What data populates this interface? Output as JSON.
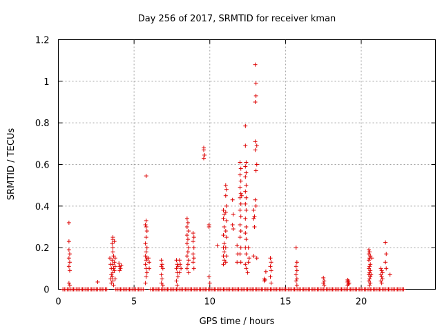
{
  "chart_data": {
    "type": "scatter",
    "title": "Day 256 of 2017, SRMTID for receiver kman",
    "xlabel": "GPS time / hours",
    "ylabel": "SRMTID / TECUs",
    "xlim": [
      0,
      24
    ],
    "ylim": [
      0,
      1.2
    ],
    "plot_xmax": 24.9,
    "xticks": [
      0,
      5,
      10,
      15,
      20
    ],
    "xtick_labels": [
      "0",
      "5",
      "10",
      "15",
      "20"
    ],
    "yticks": [
      0,
      0.2,
      0.4,
      0.6,
      0.8,
      1,
      1.2
    ],
    "ytick_labels": [
      "0",
      "0.2",
      "0.4",
      "0.6",
      "0.8",
      "1",
      "1.2"
    ],
    "grid": true,
    "marker": "+",
    "color": "#dd0000",
    "series": [
      {
        "name": "SRMTID",
        "points": [
          [
            0.7,
            0.32
          ],
          [
            0.7,
            0.23
          ],
          [
            0.7,
            0.19
          ],
          [
            0.75,
            0.17
          ],
          [
            0.7,
            0.15
          ],
          [
            0.75,
            0.13
          ],
          [
            0.7,
            0.11
          ],
          [
            0.75,
            0.09
          ],
          [
            0.7,
            0.03
          ],
          [
            0.75,
            0.02
          ],
          [
            2.6,
            0.035
          ],
          [
            3.4,
            0.15
          ],
          [
            3.45,
            0.12
          ],
          [
            3.5,
            0.1
          ],
          [
            3.5,
            0.07
          ],
          [
            3.45,
            0.05
          ],
          [
            3.5,
            0.03
          ],
          [
            3.6,
            0.25
          ],
          [
            3.6,
            0.24
          ],
          [
            3.55,
            0.22
          ],
          [
            3.6,
            0.2
          ],
          [
            3.6,
            0.18
          ],
          [
            3.65,
            0.16
          ],
          [
            3.55,
            0.14
          ],
          [
            3.6,
            0.12
          ],
          [
            3.65,
            0.1
          ],
          [
            3.6,
            0.08
          ],
          [
            3.55,
            0.06
          ],
          [
            3.6,
            0.04
          ],
          [
            3.65,
            0.02
          ],
          [
            3.7,
            0.23
          ],
          [
            3.75,
            0.15
          ],
          [
            3.7,
            0.13
          ],
          [
            3.75,
            0.11
          ],
          [
            3.7,
            0.09
          ],
          [
            3.75,
            0.05
          ],
          [
            4.0,
            0.125
          ],
          [
            4.05,
            0.11
          ],
          [
            4.1,
            0.1
          ],
          [
            4.05,
            0.09
          ],
          [
            4.15,
            0.115
          ],
          [
            5.8,
            0.545
          ],
          [
            5.8,
            0.33
          ],
          [
            5.75,
            0.31
          ],
          [
            5.8,
            0.3
          ],
          [
            5.85,
            0.28
          ],
          [
            5.8,
            0.25
          ],
          [
            5.75,
            0.22
          ],
          [
            5.85,
            0.2
          ],
          [
            5.8,
            0.18
          ],
          [
            5.75,
            0.16
          ],
          [
            5.85,
            0.15
          ],
          [
            5.8,
            0.14
          ],
          [
            5.75,
            0.12
          ],
          [
            5.8,
            0.1
          ],
          [
            5.85,
            0.08
          ],
          [
            5.8,
            0.06
          ],
          [
            5.75,
            0.03
          ],
          [
            5.95,
            0.15
          ],
          [
            6.0,
            0.13
          ],
          [
            6.0,
            0.1
          ],
          [
            6.8,
            0.14
          ],
          [
            6.85,
            0.12
          ],
          [
            6.8,
            0.11
          ],
          [
            6.9,
            0.1
          ],
          [
            6.8,
            0.07
          ],
          [
            6.85,
            0.05
          ],
          [
            6.8,
            0.03
          ],
          [
            6.9,
            0.02
          ],
          [
            7.8,
            0.14
          ],
          [
            7.85,
            0.12
          ],
          [
            7.9,
            0.11
          ],
          [
            7.8,
            0.1
          ],
          [
            7.85,
            0.08
          ],
          [
            7.9,
            0.06
          ],
          [
            7.8,
            0.04
          ],
          [
            7.85,
            0.02
          ],
          [
            8.0,
            0.14
          ],
          [
            8.05,
            0.12
          ],
          [
            8.1,
            0.1
          ],
          [
            8.0,
            0.08
          ],
          [
            8.5,
            0.34
          ],
          [
            8.55,
            0.32
          ],
          [
            8.5,
            0.3
          ],
          [
            8.6,
            0.28
          ],
          [
            8.5,
            0.26
          ],
          [
            8.55,
            0.24
          ],
          [
            8.5,
            0.22
          ],
          [
            8.6,
            0.2
          ],
          [
            8.55,
            0.18
          ],
          [
            8.5,
            0.16
          ],
          [
            8.6,
            0.14
          ],
          [
            8.55,
            0.12
          ],
          [
            8.5,
            0.1
          ],
          [
            8.6,
            0.08
          ],
          [
            8.9,
            0.27
          ],
          [
            8.95,
            0.25
          ],
          [
            8.9,
            0.23
          ],
          [
            8.95,
            0.2
          ],
          [
            8.9,
            0.17
          ],
          [
            8.95,
            0.15
          ],
          [
            8.9,
            0.13
          ],
          [
            8.95,
            0.1
          ],
          [
            9.6,
            0.68
          ],
          [
            9.6,
            0.67
          ],
          [
            9.65,
            0.645
          ],
          [
            9.6,
            0.63
          ],
          [
            9.95,
            0.31
          ],
          [
            9.95,
            0.3
          ],
          [
            9.95,
            0.06
          ],
          [
            10.0,
            0.03
          ],
          [
            10.5,
            0.21
          ],
          [
            10.9,
            0.38
          ],
          [
            10.95,
            0.36
          ],
          [
            10.9,
            0.34
          ],
          [
            10.95,
            0.3
          ],
          [
            10.9,
            0.26
          ],
          [
            10.95,
            0.22
          ],
          [
            10.9,
            0.2
          ],
          [
            10.95,
            0.18
          ],
          [
            10.9,
            0.16
          ],
          [
            10.95,
            0.14
          ],
          [
            10.9,
            0.12
          ],
          [
            11.05,
            0.5
          ],
          [
            11.1,
            0.48
          ],
          [
            11.05,
            0.45
          ],
          [
            11.1,
            0.4
          ],
          [
            11.05,
            0.37
          ],
          [
            11.1,
            0.33
          ],
          [
            11.05,
            0.28
          ],
          [
            11.1,
            0.25
          ],
          [
            11.05,
            0.2
          ],
          [
            11.1,
            0.16
          ],
          [
            11.05,
            0.13
          ],
          [
            11.5,
            0.43
          ],
          [
            11.55,
            0.36
          ],
          [
            11.5,
            0.31
          ],
          [
            11.55,
            0.29
          ],
          [
            11.8,
            0.21
          ],
          [
            11.85,
            0.17
          ],
          [
            11.8,
            0.13
          ],
          [
            12.0,
            0.61
          ],
          [
            12.05,
            0.58
          ],
          [
            12.0,
            0.55
          ],
          [
            12.05,
            0.52
          ],
          [
            12.0,
            0.49
          ],
          [
            12.05,
            0.46
          ],
          [
            12.1,
            0.45
          ],
          [
            12.0,
            0.44
          ],
          [
            12.05,
            0.41
          ],
          [
            12.0,
            0.38
          ],
          [
            12.05,
            0.35
          ],
          [
            12.0,
            0.31
          ],
          [
            12.05,
            0.28
          ],
          [
            12.0,
            0.25
          ],
          [
            12.05,
            0.2
          ],
          [
            12.0,
            0.17
          ],
          [
            12.05,
            0.13
          ],
          [
            12.35,
            0.785
          ],
          [
            12.35,
            0.69
          ],
          [
            12.4,
            0.61
          ],
          [
            12.35,
            0.59
          ],
          [
            12.4,
            0.56
          ],
          [
            12.35,
            0.54
          ],
          [
            12.4,
            0.5
          ],
          [
            12.35,
            0.47
          ],
          [
            12.4,
            0.44
          ],
          [
            12.35,
            0.41
          ],
          [
            12.4,
            0.38
          ],
          [
            12.35,
            0.34
          ],
          [
            12.4,
            0.3
          ],
          [
            12.35,
            0.27
          ],
          [
            12.4,
            0.24
          ],
          [
            12.35,
            0.2
          ],
          [
            12.4,
            0.17
          ],
          [
            12.35,
            0.12
          ],
          [
            12.4,
            0.1
          ],
          [
            12.55,
            0.2
          ],
          [
            12.6,
            0.15
          ],
          [
            12.55,
            0.13
          ],
          [
            12.5,
            0.08
          ],
          [
            12.9,
            0.38
          ],
          [
            12.95,
            0.35
          ],
          [
            12.9,
            0.34
          ],
          [
            12.95,
            0.3
          ],
          [
            12.9,
            0.16
          ],
          [
            13.0,
            1.08
          ],
          [
            13.05,
            0.99
          ],
          [
            13.05,
            0.93
          ],
          [
            13.0,
            0.9
          ],
          [
            13.0,
            0.71
          ],
          [
            13.1,
            0.69
          ],
          [
            13.0,
            0.67
          ],
          [
            13.1,
            0.6
          ],
          [
            13.05,
            0.57
          ],
          [
            13.0,
            0.43
          ],
          [
            13.05,
            0.4
          ],
          [
            13.1,
            0.15
          ],
          [
            13.6,
            0.05
          ],
          [
            13.65,
            0.045
          ],
          [
            13.6,
            0.04
          ],
          [
            13.7,
            0.085
          ],
          [
            14.0,
            0.15
          ],
          [
            14.05,
            0.13
          ],
          [
            14.0,
            0.11
          ],
          [
            14.05,
            0.09
          ],
          [
            14.0,
            0.06
          ],
          [
            14.05,
            0.03
          ],
          [
            15.7,
            0.2
          ],
          [
            15.75,
            0.13
          ],
          [
            15.7,
            0.11
          ],
          [
            15.75,
            0.09
          ],
          [
            15.7,
            0.07
          ],
          [
            15.75,
            0.05
          ],
          [
            15.7,
            0.04
          ],
          [
            15.75,
            0.02
          ],
          [
            17.5,
            0.055
          ],
          [
            17.55,
            0.04
          ],
          [
            17.5,
            0.03
          ],
          [
            17.55,
            0.02
          ],
          [
            19.1,
            0.045
          ],
          [
            19.15,
            0.04
          ],
          [
            19.1,
            0.035
          ],
          [
            19.2,
            0.03
          ],
          [
            19.15,
            0.025
          ],
          [
            19.1,
            0.02
          ],
          [
            20.5,
            0.19
          ],
          [
            20.55,
            0.18
          ],
          [
            20.5,
            0.17
          ],
          [
            20.6,
            0.16
          ],
          [
            20.55,
            0.15
          ],
          [
            20.5,
            0.14
          ],
          [
            20.6,
            0.12
          ],
          [
            20.55,
            0.11
          ],
          [
            20.5,
            0.1
          ],
          [
            20.6,
            0.09
          ],
          [
            20.55,
            0.08
          ],
          [
            20.5,
            0.07
          ],
          [
            20.6,
            0.06
          ],
          [
            20.55,
            0.05
          ],
          [
            20.5,
            0.04
          ],
          [
            20.6,
            0.03
          ],
          [
            20.55,
            0.02
          ],
          [
            20.7,
            0.15
          ],
          [
            20.65,
            0.07
          ],
          [
            21.3,
            0.1
          ],
          [
            21.35,
            0.09
          ],
          [
            21.4,
            0.08
          ],
          [
            21.3,
            0.07
          ],
          [
            21.35,
            0.06
          ],
          [
            21.4,
            0.05
          ],
          [
            21.3,
            0.04
          ],
          [
            21.35,
            0.03
          ],
          [
            21.6,
            0.225
          ],
          [
            21.65,
            0.17
          ],
          [
            21.6,
            0.13
          ],
          [
            21.65,
            0.1
          ],
          [
            21.9,
            0.07
          ]
        ],
        "baseline_runs": [
          [
            0.3,
            3.2
          ],
          [
            3.8,
            5.6
          ],
          [
            6.1,
            22.8
          ]
        ],
        "baseline_step": 0.1
      }
    ]
  }
}
